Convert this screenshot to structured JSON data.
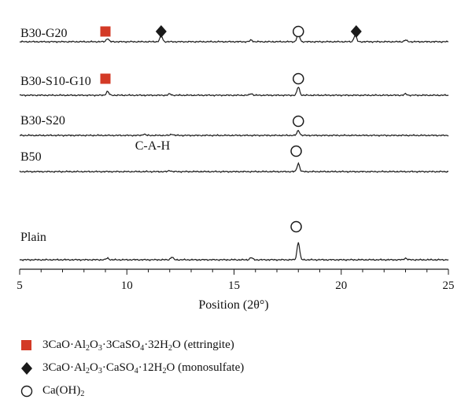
{
  "chart_data": {
    "type": "line",
    "title": "",
    "xlabel": "Position (2θ°)",
    "ylabel": "",
    "xlim": [
      5,
      25
    ],
    "xticks": [
      5,
      10,
      15,
      20,
      25
    ],
    "x_minor_step": 1,
    "series": [
      {
        "name": "B30-G20",
        "peaks": [
          [
            9.1,
            0.3
          ],
          [
            11.6,
            0.55
          ],
          [
            15.8,
            0.15
          ],
          [
            18.0,
            0.85
          ],
          [
            20.65,
            0.6
          ],
          [
            23.0,
            0.15
          ]
        ],
        "markers": [
          {
            "symbol": "ettringite",
            "x": 9.0
          },
          {
            "symbol": "monosulfate",
            "x": 11.6
          },
          {
            "symbol": "caoh2",
            "x": 18.0
          },
          {
            "symbol": "monosulfate",
            "x": 20.7
          }
        ]
      },
      {
        "name": "B30-S10-G10",
        "peaks": [
          [
            9.1,
            0.35
          ],
          [
            12.0,
            0.12
          ],
          [
            15.8,
            0.15
          ],
          [
            18.0,
            0.75
          ],
          [
            23.0,
            0.12
          ]
        ],
        "markers": [
          {
            "symbol": "ettringite",
            "x": 9.0
          },
          {
            "symbol": "caoh2",
            "x": 18.0
          }
        ]
      },
      {
        "name": "B30-S20",
        "peaks": [
          [
            10.8,
            0.12
          ],
          [
            12.1,
            0.12
          ],
          [
            18.0,
            0.45
          ]
        ],
        "markers": [
          {
            "symbol": "caoh2",
            "x": 18.0
          }
        ]
      },
      {
        "name": "B50",
        "peaks": [
          [
            12.0,
            0.1
          ],
          [
            18.0,
            0.75
          ]
        ],
        "markers": [
          {
            "symbol": "caoh2",
            "x": 17.9
          }
        ]
      },
      {
        "name": "Plain",
        "peaks": [
          [
            9.1,
            0.15
          ],
          [
            12.1,
            0.25
          ],
          [
            15.8,
            0.2
          ],
          [
            18.0,
            1.6
          ],
          [
            23.0,
            0.15
          ]
        ],
        "markers": [
          {
            "symbol": "caoh2",
            "x": 17.9
          }
        ]
      }
    ],
    "annotations": [
      {
        "text": "C-A-H",
        "x": 11.2
      }
    ],
    "legend": [
      {
        "symbol": "ettringite",
        "color": "#d33a26",
        "text_parts": [
          "3CaO·Al",
          "2",
          "O",
          "3",
          "·3CaSO",
          "4",
          "·32H",
          "2",
          "O (ettringite)"
        ]
      },
      {
        "symbol": "monosulfate",
        "color": "#1a1a1a",
        "text_parts": [
          "3CaO·Al",
          "2",
          "O",
          "3",
          "·CaSO",
          "4",
          "·12H",
          "2",
          "O (monosulfate)"
        ]
      },
      {
        "symbol": "caoh2",
        "color": "#1a1a1a",
        "text_parts": [
          "Ca(OH)",
          "2"
        ]
      }
    ],
    "legend_position": "bottom-left",
    "grid": false
  },
  "colors": {
    "ettringite": "#d33a26",
    "line": "#1a1a1a"
  }
}
